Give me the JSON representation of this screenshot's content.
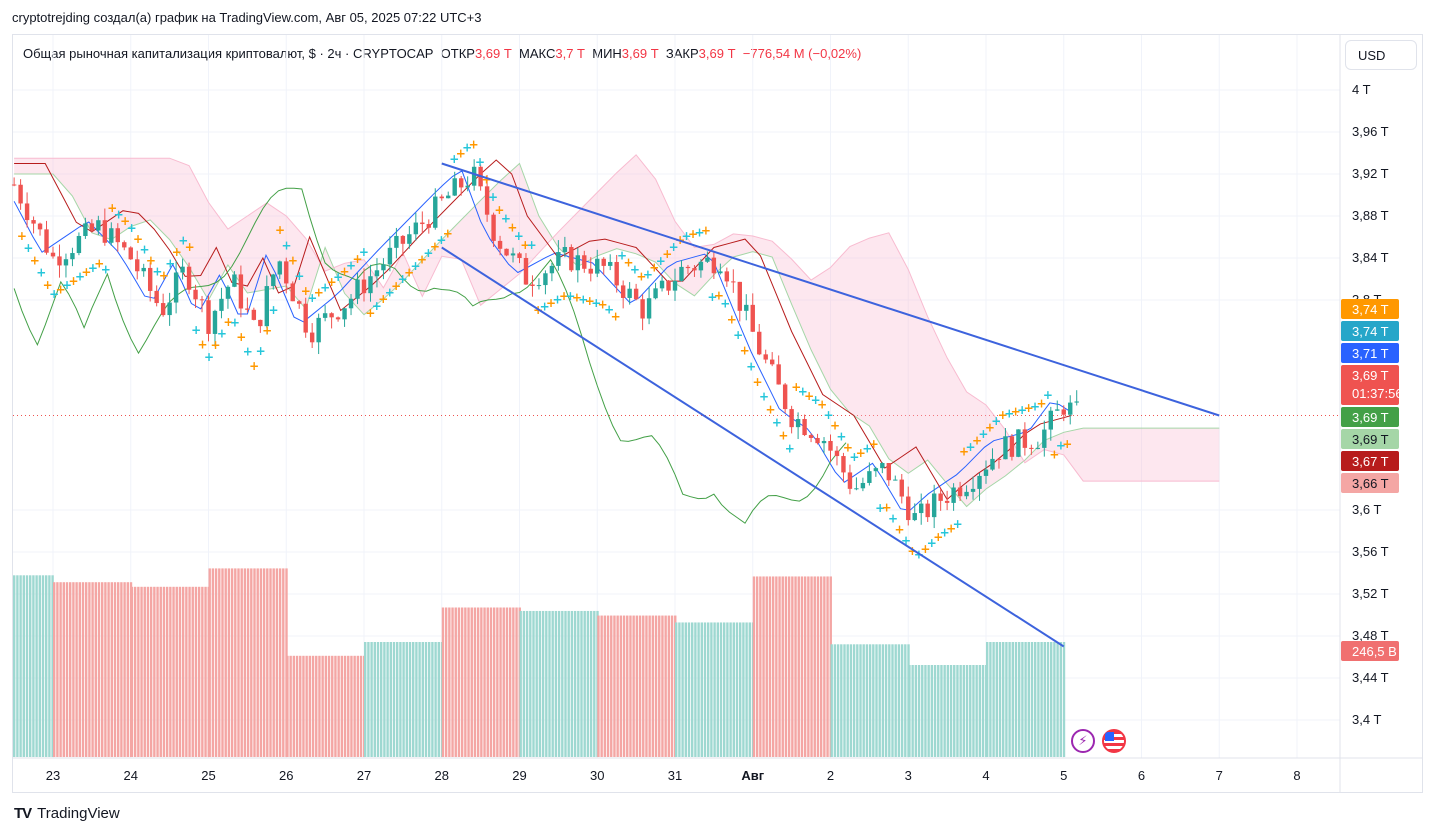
{
  "header": {
    "published_by": "cryptotrejding создал(а) график на TradingView.com, Авг 05, 2025 07:22 UTC+3"
  },
  "legend": {
    "symbol": "Общая рыночная капитализация криптовалют, $ · 2ч · CRYPTOCAP",
    "open_label": "ОТКР",
    "open_value": "3,69 T",
    "high_label": "МАКС",
    "high_value": "3,7 T",
    "low_label": "МИН",
    "low_value": "3,69 T",
    "close_label": "ЗАКР",
    "close_value": "3,69 T",
    "change": "−776,54 M (−0,02%)"
  },
  "currency_button": "USD",
  "brand": {
    "logo": "TV",
    "name": "TradingView"
  },
  "colors": {
    "up": "#26a69a",
    "down": "#ef5350",
    "trendline": "#3d63dd",
    "cloud_up": "#a5d6a7",
    "cloud_down": "#f8bbd0",
    "lagging": "#43a047",
    "baseline": "#b71c1c",
    "conversion": "#2962ff",
    "psar_a": "#26c6da",
    "psar_b": "#ff9800",
    "volume_up": "#9ed8d1",
    "volume_down": "#f4a6a4"
  },
  "price_badges": [
    {
      "text": "3,74 T",
      "price": 3.74,
      "color": "#ff9800",
      "text_color": "#ffffff"
    },
    {
      "text": "3,74 T",
      "price": 3.74,
      "color": "#26a6c9",
      "text_color": "#ffffff"
    },
    {
      "text": "3,71 T",
      "price": 3.71,
      "color": "#2962ff",
      "text_color": "#ffffff"
    },
    {
      "text": "3,69 T",
      "price": 3.69,
      "color": "#ef5350",
      "text_color": "#ffffff",
      "sub": "01:37:56"
    },
    {
      "text": "3,69 T",
      "price": 3.69,
      "color": "#43a047",
      "text_color": "#ffffff"
    },
    {
      "text": "3,69 T",
      "price": 3.69,
      "color": "#a5d6a7",
      "text_color": "#131722"
    },
    {
      "text": "3,67 T",
      "price": 3.67,
      "color": "#b71c1c",
      "text_color": "#ffffff"
    },
    {
      "text": "3,66 T",
      "price": 3.66,
      "color": "#f4a6a4",
      "text_color": "#131722"
    },
    {
      "text": "246,5 B",
      "price": 3.48,
      "color": "#f07070",
      "text_color": "#ffffff"
    }
  ],
  "chart_data": {
    "type": "candlestick",
    "title": "",
    "timeframe": "2ч",
    "y_ticks": [
      "4 T",
      "3,96 T",
      "3,92 T",
      "3,88 T",
      "3,84 T",
      "3,8 T",
      "3,6 T",
      "3,56 T",
      "3,52 T",
      "3,48 T",
      "3,44 T",
      "3,4 T"
    ],
    "y_tick_values": [
      4.0,
      3.96,
      3.92,
      3.88,
      3.84,
      3.8,
      3.6,
      3.56,
      3.52,
      3.48,
      3.44,
      3.4
    ],
    "x_ticks": [
      "23",
      "24",
      "25",
      "26",
      "27",
      "28",
      "29",
      "30",
      "31",
      "Авг",
      "2",
      "3",
      "4",
      "5",
      "6",
      "7",
      "8"
    ],
    "ylim": [
      3.37,
      4.03
    ],
    "last_price": 3.69,
    "series": [
      {
        "name": "Ichimoku Cloud",
        "kind": "cloud"
      },
      {
        "name": "Parabolic SAR",
        "kind": "markers"
      },
      {
        "name": "Volume",
        "kind": "histogram",
        "last_value": "246,5 B"
      }
    ],
    "trendlines": [
      {
        "from": [
          "28",
          3.93
        ],
        "to": [
          "7",
          3.69
        ]
      },
      {
        "from": [
          "28",
          3.85
        ],
        "to": [
          "5",
          3.47
        ]
      }
    ],
    "volume_blocks": [
      {
        "start": "22",
        "end": "23",
        "value": 158,
        "dir": "up"
      },
      {
        "start": "23",
        "end": "24",
        "value": 152,
        "dir": "down"
      },
      {
        "start": "24",
        "end": "25",
        "value": 148,
        "dir": "down"
      },
      {
        "start": "25",
        "end": "26",
        "value": 164,
        "dir": "down"
      },
      {
        "start": "26",
        "end": "27",
        "value": 88,
        "dir": "down"
      },
      {
        "start": "27",
        "end": "28",
        "value": 100,
        "dir": "up"
      },
      {
        "start": "28",
        "end": "29",
        "value": 130,
        "dir": "down"
      },
      {
        "start": "29",
        "end": "30",
        "value": 127,
        "dir": "up"
      },
      {
        "start": "30",
        "end": "31",
        "value": 123,
        "dir": "down"
      },
      {
        "start": "31",
        "end": "Авг",
        "value": 117,
        "dir": "up"
      },
      {
        "start": "Авг",
        "end": "2",
        "value": 157,
        "dir": "down"
      },
      {
        "start": "2",
        "end": "3",
        "value": 98,
        "dir": "up"
      },
      {
        "start": "3",
        "end": "4",
        "value": 80,
        "dir": "up"
      },
      {
        "start": "4",
        "end": "5",
        "value": 100,
        "dir": "up"
      },
      {
        "start": "5",
        "end": "5.3",
        "value": 98,
        "dir": "down"
      }
    ]
  }
}
